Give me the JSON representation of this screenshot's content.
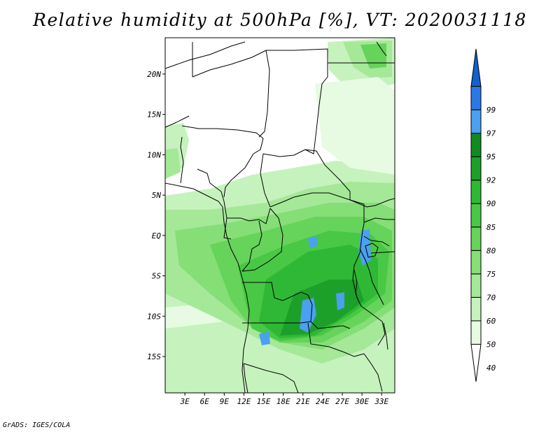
{
  "title": "Relative humidity at 500hPa [%], VT: 2020031118",
  "credit": "GrADS: IGES/COLA",
  "map": {
    "lat_range": [
      -19.5,
      24.5
    ],
    "lon_range": [
      0,
      35
    ],
    "lat_ticks": [
      {
        "value": 20,
        "label": "20N"
      },
      {
        "value": 15,
        "label": "15N"
      },
      {
        "value": 10,
        "label": "10N"
      },
      {
        "value": 5,
        "label": "5N"
      },
      {
        "value": 0,
        "label": "EQ"
      },
      {
        "value": -5,
        "label": "5S"
      },
      {
        "value": -10,
        "label": "10S"
      },
      {
        "value": -15,
        "label": "15S"
      }
    ],
    "lon_ticks": [
      {
        "value": 3,
        "label": "3E"
      },
      {
        "value": 6,
        "label": "6E"
      },
      {
        "value": 9,
        "label": "9E"
      },
      {
        "value": 12,
        "label": "12E"
      },
      {
        "value": 15,
        "label": "15E"
      },
      {
        "value": 18,
        "label": "18E"
      },
      {
        "value": 21,
        "label": "21E"
      },
      {
        "value": 24,
        "label": "24E"
      },
      {
        "value": 27,
        "label": "27E"
      },
      {
        "value": 30,
        "label": "30E"
      },
      {
        "value": 33,
        "label": "33E"
      }
    ]
  },
  "colorbar": {
    "levels": [
      "40",
      "50",
      "60",
      "70",
      "75",
      "80",
      "85",
      "90",
      "92",
      "95",
      "97",
      "99"
    ],
    "colors": [
      "#ffffff",
      "#e6fbe2",
      "#c6f2bd",
      "#a5e898",
      "#85de76",
      "#66d35a",
      "#48c845",
      "#2fb836",
      "#1da02a",
      "#118b21",
      "#4ba0f0",
      "#2a78e6",
      "#1460cc"
    ]
  }
}
